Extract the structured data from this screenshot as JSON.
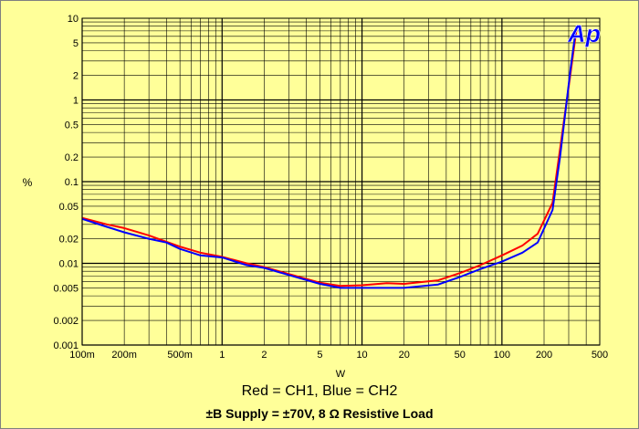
{
  "chart_data": {
    "type": "line",
    "xscale": "log",
    "yscale": "log",
    "xlim": [
      0.1,
      500
    ],
    "ylim": [
      0.001,
      10
    ],
    "xlabel": "W",
    "ylabel": "%",
    "grid": true,
    "logo": "Ap",
    "x_ticks": [
      {
        "v": 0.1,
        "label": "100m"
      },
      {
        "v": 0.2,
        "label": "200m"
      },
      {
        "v": 0.5,
        "label": "500m"
      },
      {
        "v": 1,
        "label": "1"
      },
      {
        "v": 2,
        "label": "2"
      },
      {
        "v": 5,
        "label": "5"
      },
      {
        "v": 10,
        "label": "10"
      },
      {
        "v": 20,
        "label": "20"
      },
      {
        "v": 50,
        "label": "50"
      },
      {
        "v": 100,
        "label": "100"
      },
      {
        "v": 200,
        "label": "200"
      },
      {
        "v": 500,
        "label": "500"
      }
    ],
    "y_ticks": [
      {
        "v": 10,
        "label": "10"
      },
      {
        "v": 5,
        "label": "5"
      },
      {
        "v": 2,
        "label": "2"
      },
      {
        "v": 1,
        "label": "1"
      },
      {
        "v": 0.5,
        "label": "0.5"
      },
      {
        "v": 0.2,
        "label": "0.2"
      },
      {
        "v": 0.1,
        "label": "0.1"
      },
      {
        "v": 0.05,
        "label": "0.05"
      },
      {
        "v": 0.02,
        "label": "0.02"
      },
      {
        "v": 0.01,
        "label": "0.01"
      },
      {
        "v": 0.005,
        "label": "0.005"
      },
      {
        "v": 0.002,
        "label": "0.002"
      },
      {
        "v": 0.001,
        "label": "0.001"
      }
    ],
    "series": [
      {
        "color": "#ff0000",
        "points": [
          [
            0.1,
            0.036
          ],
          [
            0.15,
            0.03
          ],
          [
            0.2,
            0.027
          ],
          [
            0.3,
            0.022
          ],
          [
            0.5,
            0.016
          ],
          [
            0.7,
            0.0135
          ],
          [
            1,
            0.012
          ],
          [
            1.5,
            0.01
          ],
          [
            2,
            0.009
          ],
          [
            3,
            0.0074
          ],
          [
            5,
            0.0058
          ],
          [
            7,
            0.0053
          ],
          [
            10,
            0.0054
          ],
          [
            15,
            0.0057
          ],
          [
            20,
            0.0056
          ],
          [
            35,
            0.0062
          ],
          [
            50,
            0.0076
          ],
          [
            70,
            0.0095
          ],
          [
            100,
            0.0125
          ],
          [
            140,
            0.0165
          ],
          [
            180,
            0.023
          ],
          [
            230,
            0.055
          ],
          [
            260,
            0.25
          ],
          [
            310,
            2.2
          ],
          [
            340,
            7
          ]
        ]
      },
      {
        "color": "#0000ff",
        "points": [
          [
            0.1,
            0.035
          ],
          [
            0.15,
            0.028
          ],
          [
            0.2,
            0.024
          ],
          [
            0.3,
            0.02
          ],
          [
            0.4,
            0.018
          ],
          [
            0.5,
            0.015
          ],
          [
            0.7,
            0.0125
          ],
          [
            1,
            0.0118
          ],
          [
            1.5,
            0.0095
          ],
          [
            2,
            0.0088
          ],
          [
            3,
            0.0072
          ],
          [
            5,
            0.0056
          ],
          [
            7,
            0.005
          ],
          [
            10,
            0.005
          ],
          [
            20,
            0.005
          ],
          [
            35,
            0.0055
          ],
          [
            50,
            0.0068
          ],
          [
            70,
            0.0085
          ],
          [
            100,
            0.0105
          ],
          [
            140,
            0.0135
          ],
          [
            180,
            0.018
          ],
          [
            230,
            0.045
          ],
          [
            260,
            0.2
          ],
          [
            310,
            2.5
          ],
          [
            340,
            8
          ]
        ]
      }
    ]
  },
  "captions": {
    "line1": "Red = CH1,  Blue  = CH2",
    "line2": "±B Supply = ±70V,   8 Ω Resistive Load"
  }
}
